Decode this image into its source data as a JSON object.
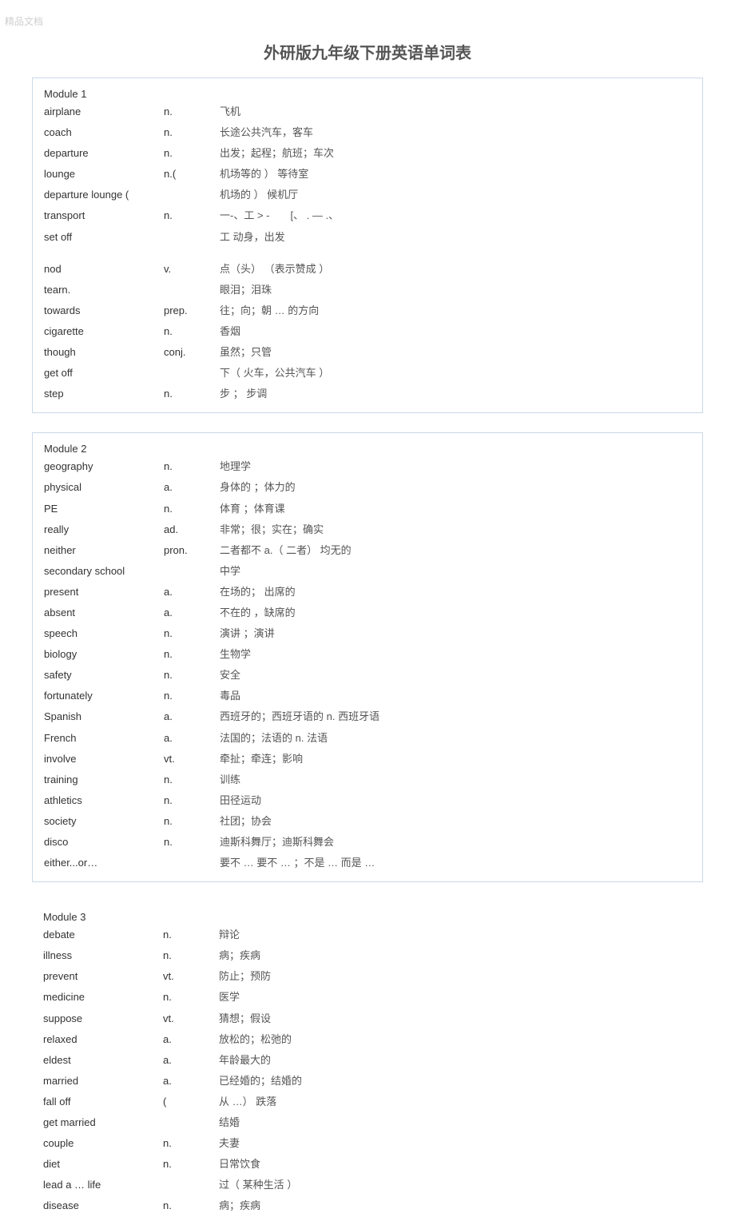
{
  "watermark": "精品文档",
  "title": "外研版九年级下册英语单词表",
  "modules": [
    {
      "heading": "Module 1",
      "rows": [
        {
          "word": "airplane",
          "pos": "n.",
          "def": "飞机"
        },
        {
          "word": "coach",
          "pos": "n.",
          "def": "长途公共汽车，客车"
        },
        {
          "word": "departure",
          "pos": "n.",
          "def": "出发；起程；航班；车次"
        },
        {
          "word": "lounge",
          "pos": "n.(",
          "def": "机场等的 ） 等待室"
        },
        {
          "word": "departure lounge (",
          "pos": "",
          "def": "机场的 ） 候机厅"
        },
        {
          "word": "transport",
          "pos": "n.",
          "def": "一-、工 > -　　[、 . — .、"
        },
        {
          "word": "set off",
          "pos": "",
          "def": "工  动身，出发"
        },
        {
          "word": "",
          "pos": "",
          "def": ""
        },
        {
          "word": "nod",
          "pos": "v.",
          "def": "点（头） （表示赞成 ）"
        },
        {
          "word": "tearn.",
          "pos": "",
          "def": "眼泪；泪珠"
        },
        {
          "word": "towards",
          "pos": "prep.",
          "def": "往；向；朝  …  的方向"
        },
        {
          "word": "cigarette",
          "pos": "n.",
          "def": "香烟"
        },
        {
          "word": "though",
          "pos": "conj.",
          "def": "虽然；只管"
        },
        {
          "word": "get off",
          "pos": "",
          "def": "下（ 火车，公共汽车 ）"
        },
        {
          "word": "step",
          "pos": "n.",
          "def": "步 ；  步调"
        }
      ]
    },
    {
      "heading": "Module 2",
      "rows": [
        {
          "word": "geography",
          "pos": "n.",
          "def": "地理学"
        },
        {
          "word": "physical",
          "pos": "a.",
          "def": "身体的 ；体力的"
        },
        {
          "word": "PE",
          "pos": "n.",
          "def": "体育 ；体育课"
        },
        {
          "word": "really",
          "pos": "ad.",
          "def": "非常；很；实在；确实"
        },
        {
          "word": "neither",
          "pos": "pron.",
          "def": "二者都不  a.（ 二者） 均无的"
        },
        {
          "word": "secondary school",
          "pos": "",
          "def": "中学"
        },
        {
          "word": "present",
          "pos": "a.",
          "def": "在场的；  出席的"
        },
        {
          "word": "absent",
          "pos": "a.",
          "def": "不在的 ，缺席的"
        },
        {
          "word": "speech",
          "pos": "n.",
          "def": "演讲 ；演讲"
        },
        {
          "word": "biology",
          "pos": "n.",
          "def": "生物学"
        },
        {
          "word": "safety",
          "pos": "n.",
          "def": "安全"
        },
        {
          "word": "fortunately",
          "pos": "n.",
          "def": "毒品"
        },
        {
          "word": "Spanish",
          "pos": "a.",
          "def": "西班牙的；西班牙语的  n. 西班牙语"
        },
        {
          "word": "French",
          "pos": "a.",
          "def": "法国的；法语的  n. 法语"
        },
        {
          "word": "involve",
          "pos": "vt.",
          "def": "牵扯；牵连；影响"
        },
        {
          "word": "training",
          "pos": "n.",
          "def": "训练"
        },
        {
          "word": "athletics",
          "pos": "n.",
          "def": "田径运动"
        },
        {
          "word": "society",
          "pos": "n.",
          "def": "社团；协会"
        },
        {
          "word": "disco",
          "pos": "n.",
          "def": "迪斯科舞厅；迪斯科舞会"
        },
        {
          "word": "either...or…",
          "pos": "",
          "def": "要不  … 要不  … ；不是  … 而是  …"
        }
      ]
    },
    {
      "heading": "Module 3",
      "rows": [
        {
          "word": "debate",
          "pos": "n.",
          "def": "辩论"
        },
        {
          "word": "illness",
          "pos": "n.",
          "def": "病；疾病"
        },
        {
          "word": "prevent",
          "pos": "vt.",
          "def": "防止；预防"
        },
        {
          "word": "medicine",
          "pos": "n.",
          "def": "医学"
        },
        {
          "word": "suppose",
          "pos": "vt.",
          "def": "猜想；假设"
        },
        {
          "word": "relaxed",
          "pos": "a.",
          "def": "放松的；松弛的"
        },
        {
          "word": "eldest",
          "pos": "a.",
          "def": "年龄最大的"
        },
        {
          "word": "married",
          "pos": "a.",
          "def": "已经婚的；结婚的"
        },
        {
          "word": "fall off",
          "pos": "(",
          "def": "从  …） 跌落"
        },
        {
          "word": "get married",
          "pos": "",
          "def": "结婚"
        },
        {
          "word": "couple",
          "pos": "n.",
          "def": "夫妻"
        },
        {
          "word": "diet",
          "pos": "n.",
          "def": "日常饮食"
        },
        {
          "word": "lead a … life",
          "pos": "",
          "def": "过（ 某种生活 ）"
        },
        {
          "word": "disease",
          "pos": "n.",
          "def": "病；疾病"
        }
      ]
    }
  ]
}
